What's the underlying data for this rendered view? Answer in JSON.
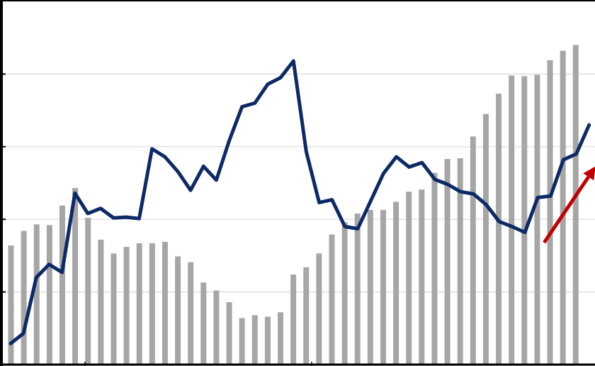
{
  "chart_data": {
    "type": "bar+line",
    "title": "",
    "xlabel": "",
    "ylabel": "",
    "ylim": [
      0,
      500
    ],
    "grid": {
      "horizontal": true,
      "values": [
        100,
        200,
        300,
        400
      ]
    },
    "colors": {
      "bars": "#a6a6a6",
      "line": "#0d2a66",
      "arrow": "#c00000",
      "grid": "#d9d9d9",
      "axis": "#000000"
    },
    "bars": {
      "name": "",
      "values": [
        164,
        184,
        193,
        192,
        219,
        243,
        202,
        172,
        153,
        162,
        167,
        167,
        169,
        149,
        141,
        113,
        102,
        86,
        64,
        68,
        66,
        72,
        124,
        134,
        153,
        179,
        196,
        208,
        213,
        213,
        224,
        238,
        241,
        264,
        283,
        284,
        314,
        345,
        373,
        398,
        397,
        399,
        419,
        432,
        440
      ]
    },
    "line": {
      "name": "",
      "values": [
        29,
        43,
        120,
        138,
        127,
        236,
        208,
        215,
        202,
        203,
        201,
        297,
        286,
        266,
        240,
        273,
        254,
        308,
        355,
        360,
        386,
        395,
        418,
        293,
        223,
        227,
        190,
        187,
        225,
        263,
        286,
        272,
        278,
        255,
        248,
        238,
        235,
        220,
        197,
        190,
        182,
        230,
        232,
        282,
        290,
        330
      ]
    },
    "annotation": {
      "type": "arrow",
      "from": [
        41.5,
        168
      ],
      "to": [
        45.5,
        273
      ]
    }
  }
}
